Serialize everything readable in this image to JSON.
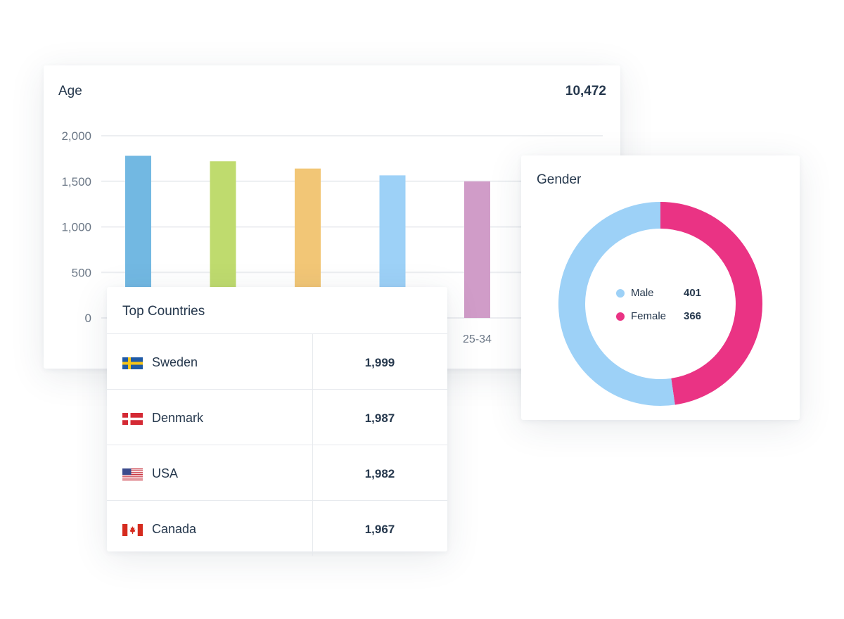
{
  "age_card": {
    "title": "Age",
    "total": "10,472"
  },
  "gender_card": {
    "title": "Gender",
    "legend": [
      {
        "label": "Male",
        "value": "401",
        "color": "#9dd1f7"
      },
      {
        "label": "Female",
        "value": "366",
        "color": "#ea3384"
      }
    ]
  },
  "countries_card": {
    "title": "Top Countries",
    "rows": [
      {
        "country": "Sweden",
        "value": "1,999",
        "flag": "sweden-flag-icon"
      },
      {
        "country": "Denmark",
        "value": "1,987",
        "flag": "denmark-flag-icon"
      },
      {
        "country": "USA",
        "value": "1,982",
        "flag": "usa-flag-icon"
      },
      {
        "country": "Canada",
        "value": "1,967",
        "flag": "canada-flag-icon"
      }
    ]
  },
  "chart_data": [
    {
      "type": "bar",
      "title": "Age",
      "ylim": [
        0,
        2000
      ],
      "yticks": [
        "2,000",
        "1,500",
        "1,000",
        "500",
        "0"
      ],
      "ytick_values": [
        2000,
        1500,
        1000,
        500,
        0
      ],
      "categories": [
        "",
        "",
        "",
        "",
        "25-34"
      ],
      "values": [
        1780,
        1720,
        1640,
        1565,
        1500
      ],
      "colors": [
        "#72b8e2",
        "#bfdb6e",
        "#f2c676",
        "#9dd1f7",
        "#d09cc8"
      ],
      "grid": true
    },
    {
      "type": "pie",
      "title": "Gender",
      "categories": [
        "Male",
        "Female"
      ],
      "values": [
        401,
        366
      ],
      "colors": [
        "#9dd1f7",
        "#ea3384"
      ]
    }
  ]
}
